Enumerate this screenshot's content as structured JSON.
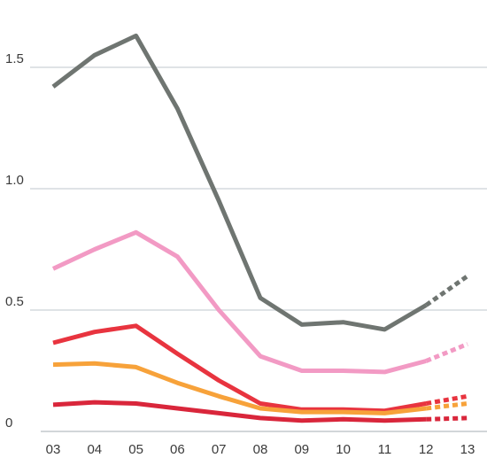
{
  "chart_data": {
    "type": "line",
    "title": "",
    "xlabel": "",
    "ylabel": "",
    "categories": [
      "03",
      "04",
      "05",
      "06",
      "07",
      "08",
      "09",
      "10",
      "11",
      "12",
      "13"
    ],
    "y_ticks": [
      "0",
      "0.5",
      "1.0",
      "1.5"
    ],
    "ylim": [
      0,
      1.75
    ],
    "grid": true,
    "legend": "none",
    "projected_from": "12",
    "series": [
      {
        "color": "#6f7571",
        "values": [
          1.42,
          1.55,
          1.63,
          1.33,
          0.95,
          0.55,
          0.44,
          0.45,
          0.42,
          0.52,
          0.64
        ]
      },
      {
        "color": "#f29ac4",
        "values": [
          0.67,
          0.75,
          0.82,
          0.72,
          0.5,
          0.31,
          0.25,
          0.25,
          0.245,
          0.29,
          0.36
        ]
      },
      {
        "color": "#e8343f",
        "values": [
          0.365,
          0.41,
          0.435,
          0.32,
          0.21,
          0.115,
          0.09,
          0.09,
          0.085,
          0.115,
          0.145
        ]
      },
      {
        "color": "#f7a23a",
        "values": [
          0.275,
          0.28,
          0.265,
          0.2,
          0.145,
          0.095,
          0.08,
          0.08,
          0.075,
          0.095,
          0.115
        ]
      },
      {
        "color": "#d9263b",
        "values": [
          0.11,
          0.12,
          0.115,
          0.095,
          0.075,
          0.055,
          0.045,
          0.05,
          0.045,
          0.05,
          0.055
        ]
      }
    ]
  }
}
